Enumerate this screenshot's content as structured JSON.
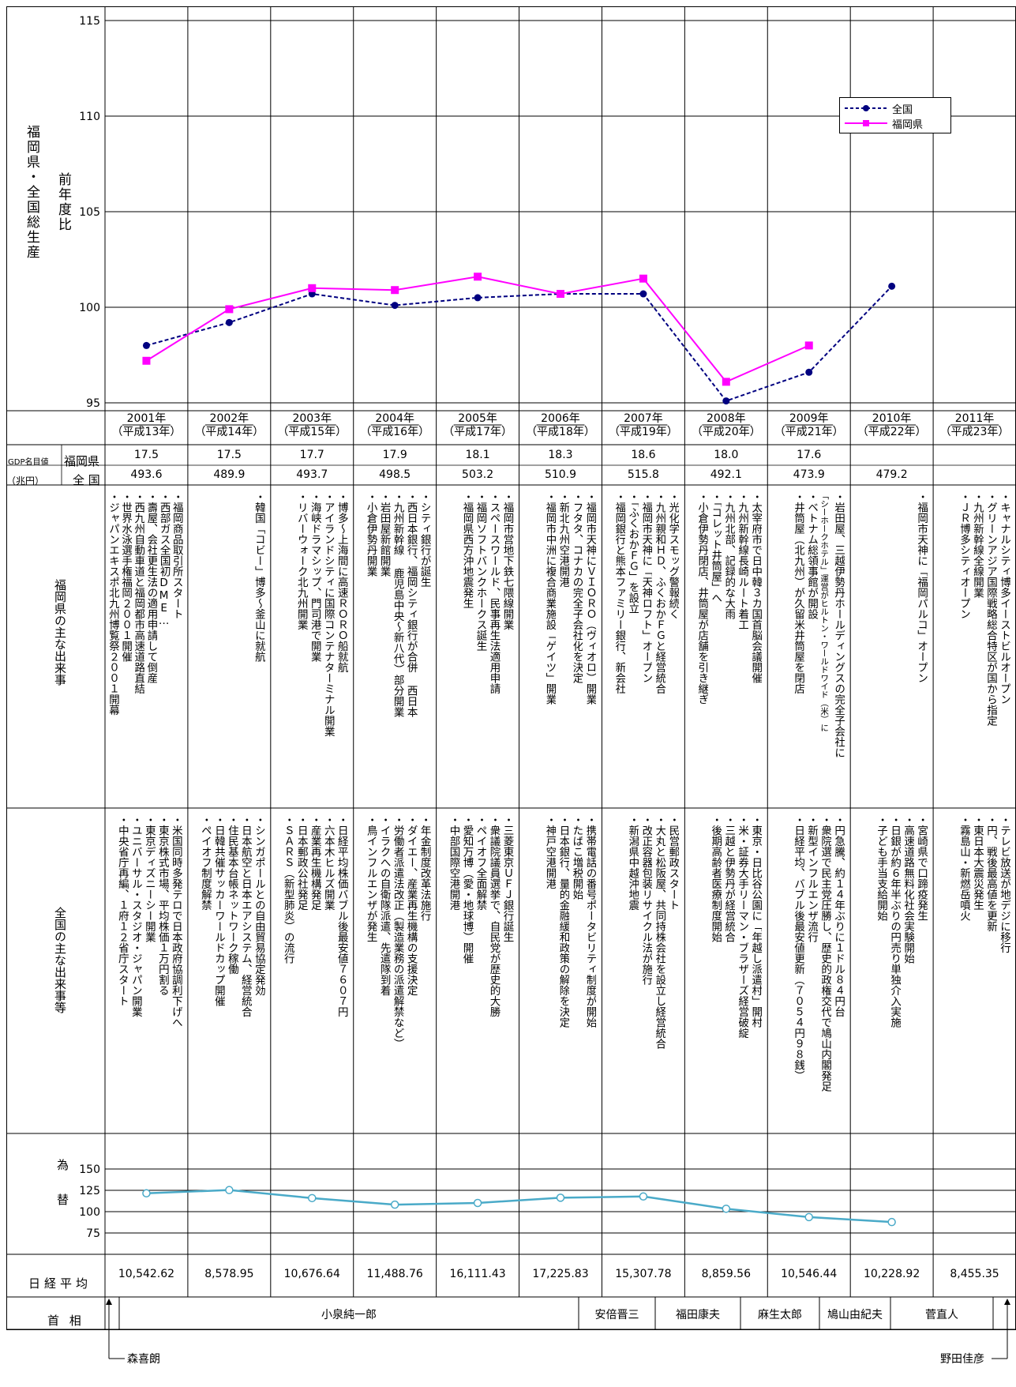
{
  "chart_data": {
    "type": "line",
    "ylabel_main": "福岡県・全国総生産",
    "ylabel_sub": "前年度比",
    "ylim": [
      95,
      115
    ],
    "yticks": [
      95,
      100,
      105,
      110,
      115
    ],
    "legend_placement": "top-right",
    "years": [
      {
        "year": "2001年",
        "heisei": "（平成13年）"
      },
      {
        "year": "2002年",
        "heisei": "（平成14年）"
      },
      {
        "year": "2003年",
        "heisei": "（平成15年）"
      },
      {
        "year": "2004年",
        "heisei": "（平成16年）"
      },
      {
        "year": "2005年",
        "heisei": "（平成17年）"
      },
      {
        "year": "2006年",
        "heisei": "（平成18年）"
      },
      {
        "year": "2007年",
        "heisei": "（平成19年）"
      },
      {
        "year": "2008年",
        "heisei": "（平成20年）"
      },
      {
        "year": "2009年",
        "heisei": "（平成21年）"
      },
      {
        "year": "2010年",
        "heisei": "（平成22年）"
      },
      {
        "year": "2011年",
        "heisei": "（平成23年）"
      }
    ],
    "series": [
      {
        "name": "全国",
        "color": "#000080",
        "values": [
          98.0,
          99.2,
          100.7,
          100.1,
          100.5,
          100.7,
          100.7,
          95.1,
          96.6,
          101.1,
          null
        ]
      },
      {
        "name": "福岡県",
        "color": "#ff00ff",
        "values": [
          97.2,
          99.9,
          101.0,
          100.9,
          101.6,
          100.7,
          101.5,
          96.1,
          98.0,
          null,
          null
        ]
      }
    ],
    "fx": {
      "label": "為替",
      "yticks": [
        75,
        100,
        125,
        150
      ],
      "ylim": [
        50,
        175
      ],
      "color": "#4aaac8",
      "values": [
        121.5,
        125.3,
        115.9,
        108.2,
        110.2,
        116.3,
        117.8,
        103.4,
        93.6,
        87.8,
        null
      ]
    }
  },
  "gdp": {
    "label_main": "GDP名目値",
    "label_unit": "（兆円）",
    "row_fukuoka_label": "福岡県",
    "row_national_label": "全 国",
    "fukuoka": [
      "17.5",
      "17.5",
      "17.7",
      "17.9",
      "18.1",
      "18.3",
      "18.6",
      "18.0",
      "17.6",
      "",
      ""
    ],
    "national": [
      "493.6",
      "489.9",
      "493.7",
      "498.5",
      "503.2",
      "510.9",
      "515.8",
      "492.1",
      "473.9",
      "479.2",
      ""
    ]
  },
  "fukuoka_events_label": "福岡県の主な出来事",
  "national_events_label": "全国の主な出来事等",
  "fukuoka_events": [
    [
      "・福岡商品取引所スタート",
      "・西部ガス全国初DME…",
      "・壽屋、会社更生法の適用申請して倒産",
      "・西九州自動車道と福岡都市高速道路直結",
      "・世界水泳選手権福岡２００１開催",
      "・ジャパンエキスポ北九州博覧祭２００１開幕"
    ],
    [
      "・韓国「コビー」博多～釜山に就航"
    ],
    [
      "・博多～上海間に高速ＲＯＲＯ船就航",
      "・アイランドシティに国際コンテナターミナル開業",
      "・海峡ドラマシップ、門司港で開業",
      "・リバーウォーク北九州開業"
    ],
    [
      "・シティ銀行が誕生",
      "・西日本銀行、福岡シティ銀行が合併 西日本",
      "・九州新幹線 鹿児島中央～新八代）部分開業",
      "・岩田屋新館開業",
      "・小倉伊勢丹開業"
    ],
    [
      "・福岡市営地下鉄七隈線開業",
      "・スペースワールド、民事再生法適用申請",
      "・福岡ソフトバンクホークス誕生",
      "・福岡県西方沖地震発生"
    ],
    [
      "・福岡市天神にＶＩＯＲＯ（ヴィオロ）開業",
      "・フタタ、コナカの完全子会社化を決定",
      "・新北九州空港開港",
      "・福岡市中洲に複合商業施設「ゲイツ」開業"
    ],
    [
      "・光化学スモッグ警報続く",
      "・九州親和ＨＤ、ふくおかＦＧと経営統合",
      "・福岡市天神に「天神ロフト」オープン",
      "・「ふくおかＦＧ」を設立",
      "・福岡銀行と熊本ファミリー銀行、新会社"
    ],
    [
      "・太宰府市で日中韓３カ国首脳会議開催",
      "・九州新幹線長崎ルート着工",
      "・九州北部、記録的な大雨",
      "・「コレット井筒屋」へ",
      "・小倉伊勢丹閉店、井筒屋が店舗を引き継ぎ"
    ],
    [
      "・岩田屋、三越伊勢丹ホールディングスの完全子会社に",
      "「シーホークホテル」運営がヒルトン・ワールドワイド（米）に",
      "・ベトナム総領事館が開設",
      "・井筒屋（北九州）が久留米井筒屋を閉店"
    ],
    [
      "・福岡市天神に「福岡パルコ」オープン"
    ],
    [
      "・キャナルシティ博多イーストビルオープン",
      "・グリーンアジア国際戦略総合特区が国から指定",
      "・九州新幹線全線開業",
      "・ＪＲ博多シティオープン"
    ]
  ],
  "national_events": [
    [
      "・米国同時多発テロで日本政府協調利下げへ",
      "・東京株式市場、平均株価１万円割る",
      "・東京ディズニーシー開業",
      "・ユニバーサル・スタジオ・ジャパン開業",
      "・中央省庁再編、１府１２省庁スタート"
    ],
    [
      "・シンガポールとの自由貿易協定発効",
      "・日本航空と日本エアシステム、経営統合",
      "・住民基本台帳ネットワーク稼働",
      "・日韓共催サッカーワールドカップ開催",
      "・ペイオフ制度解禁"
    ],
    [
      "・日経平均株価バブル後最安値７６０７円",
      "・六本木ヒルズ開業",
      "・産業再生機構発足",
      "・日本郵政公社発足",
      "・ＳＡＲＳ（新型肺炎）の流行"
    ],
    [
      "・年金制度改革法施行",
      "・ダイエー、産業再生機構の支援決定",
      "・労働者派遣法改正（製造業務の派遣解禁など）",
      "・イラクへの自衛隊派遣、先遣隊到着",
      "・鳥インフルエンザが発生"
    ],
    [
      "・三菱東京ＵＦＪ銀行誕生",
      "・衆議院議員選挙で、自民党が歴史的大勝",
      "・ペイオフ全面解禁",
      "・愛知万博（愛・地球博）開催",
      "・中部国際空港開港"
    ],
    [
      "・携帯電話の番号ポータビリティ制度が開始",
      "・たばこ増税開始",
      "・日本銀行、量的金融緩和政策の解除を決定",
      "・神戸空港開港"
    ],
    [
      "・民営郵政スタート",
      "・大丸と松阪屋、共同持株会社を設立し経営統合",
      "・改正容器包装リサイクル法が施行",
      "・新潟県中越沖地震"
    ],
    [
      "・東京・日比谷公園に「年越し派遣村」開村",
      "・米・証券大手リーマン・ブラザーズ経営破綻",
      "・三越と伊勢丹が経営統合",
      "・後期高齢者医療制度開始"
    ],
    [
      "・円急騰、約１４年ぶりに１ドル８４円台",
      "・衆院選で民主党圧勝し、歴史的政権交代で鳩山内閣発足",
      "・新型インフルエンザ流行",
      "・日経平均、バブル後最安値更新（７０５４円９８銭）"
    ],
    [
      "・宮崎県で口蹄疫発生",
      "・高速道路無料化社会実験開始",
      "・日銀が約６年半ぶりの円売り単独介入実施",
      "・子ども手当支給開始"
    ],
    [
      "・テレビ放送が地デジに移行",
      "・円、戦後最高値を更新",
      "・東日本大震災発生",
      "・霧島山・新燃岳噴火"
    ]
  ],
  "nikkei": {
    "label": "日経平均",
    "values": [
      "10,542.62",
      "8,578.95",
      "10,676.64",
      "11,488.76",
      "16,111.43",
      "17,225.83",
      "15,307.78",
      "8,859.56",
      "10,546.44",
      "10,228.92",
      "8,455.35"
    ]
  },
  "pm": {
    "label": "首 相",
    "mori": "森喜朗",
    "koizumi": "小泉純一郎",
    "abe": "安倍晋三",
    "fukuda": "福田康夫",
    "aso": "麻生太郎",
    "hatoyama": "鳩山由紀夫",
    "kan": "菅直人",
    "noda": "野田佳彦"
  }
}
